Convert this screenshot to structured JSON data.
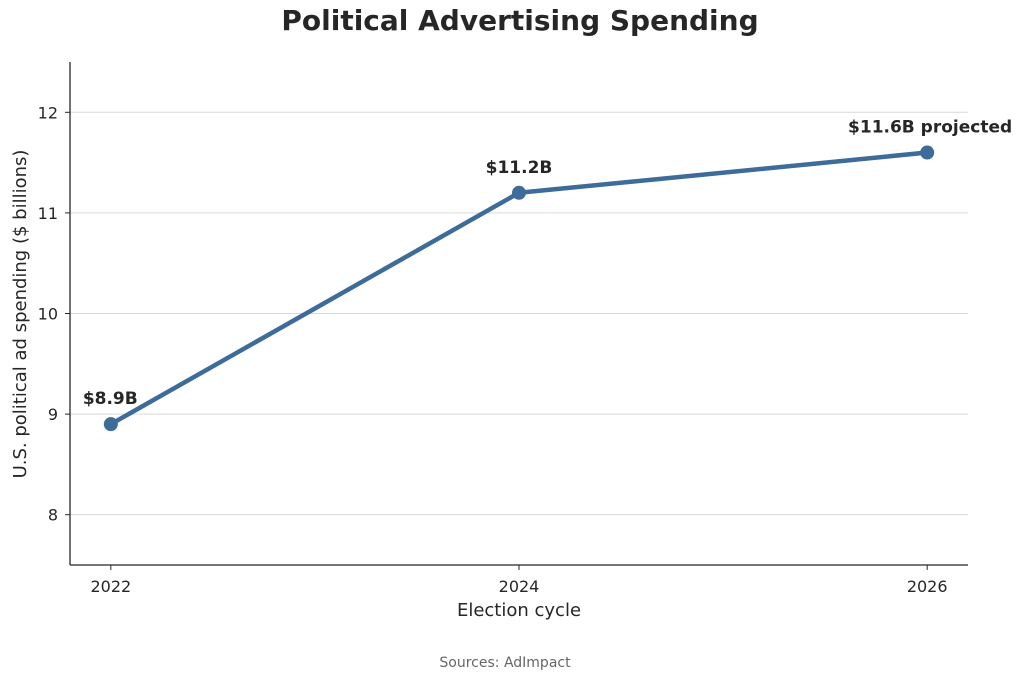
{
  "colors": {
    "line": "#3d6b9a",
    "grid": "#d9d9d9",
    "axis": "#262626",
    "text": "#262626",
    "source": "#666666"
  },
  "chart_data": {
    "type": "line",
    "title": "Political Advertising Spending",
    "xlabel": "Election cycle",
    "ylabel": "U.S. political ad spending ($ billions)",
    "x": [
      2022,
      2024,
      2026
    ],
    "series": [
      {
        "values": [
          8.9,
          11.2,
          11.6
        ]
      }
    ],
    "data_labels": [
      "$8.9B",
      "$11.2B",
      "$11.6B projected"
    ],
    "x_ticks": [
      "2022",
      "2024",
      "2026"
    ],
    "y_ticks": [
      "8",
      "9",
      "10",
      "11",
      "12"
    ],
    "ylim": [
      7.5,
      12.5
    ],
    "xlim": [
      2021.8,
      2026.2
    ],
    "grid": "horizontal",
    "legend": "none"
  },
  "source": "Sources: AdImpact"
}
